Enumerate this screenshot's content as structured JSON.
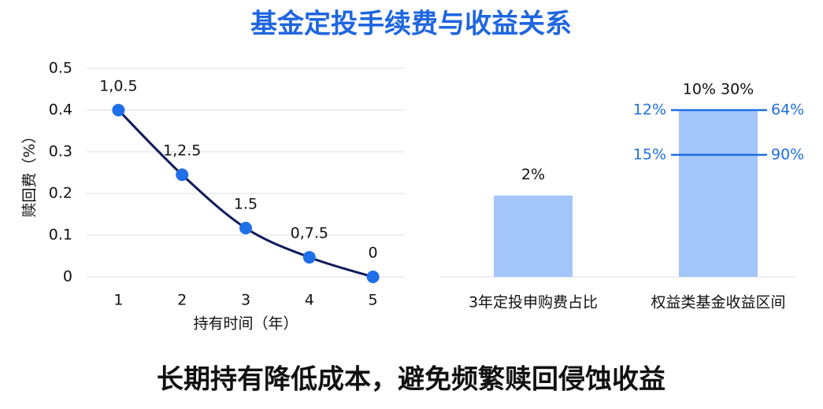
{
  "title": "基金定投手续费与收益关系",
  "footer": "长期持有降低成本，避免频繁赎回侵蚀收益",
  "chart_data": [
    {
      "type": "line",
      "x": [
        1,
        2,
        3,
        4,
        5
      ],
      "values": [
        0.4,
        0.245,
        0.117,
        0.047,
        0
      ],
      "annotations": [
        "1,0.5",
        "1,2.5",
        "1.5",
        "0,7.5",
        "0"
      ],
      "xlabel": "持有时间（年）",
      "ylabel": "赎回费（%）",
      "xlim": [
        0.5,
        5.5
      ],
      "xticks": [
        1,
        2,
        3,
        4,
        5
      ],
      "ylim": [
        0,
        0.5
      ],
      "yticks": [
        0,
        0.1,
        0.2,
        0.3,
        0.4,
        0.5
      ],
      "grid": true,
      "color": "#0f1a5a",
      "marker_color": "#1f6fe8"
    },
    {
      "type": "bar",
      "categories": [
        "3年定投申购费占比",
        "权益类基金收益区间"
      ],
      "values": [
        2,
        4.1
      ],
      "value_labels": [
        "2%",
        null
      ],
      "annotations": [
        null,
        "10% 30%"
      ],
      "ylim": [
        0,
        4.1
      ],
      "color": "#a3c5fa",
      "reference_lines": [
        {
          "value": 4.1,
          "left_label": "12%",
          "right_label": "64%"
        },
        {
          "value": 3.0,
          "left_label": "15%",
          "right_label": "90%"
        }
      ],
      "reference_color": "#1f6fe0"
    }
  ]
}
